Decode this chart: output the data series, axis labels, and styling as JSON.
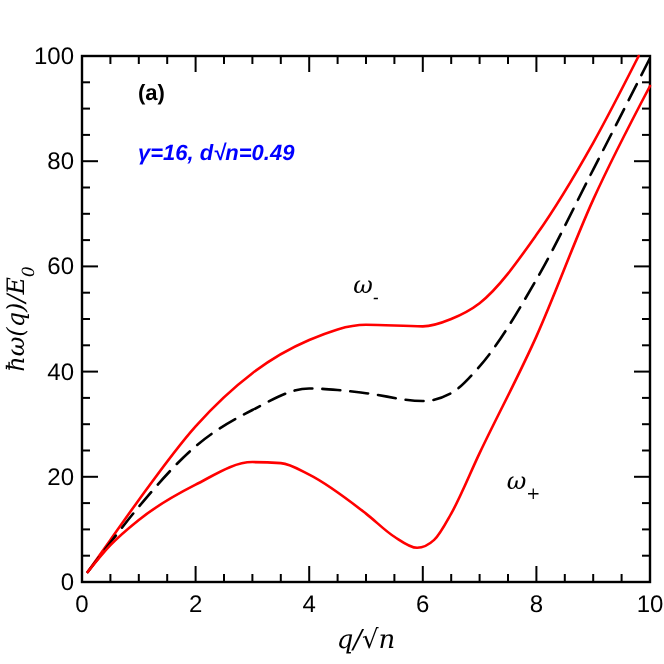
{
  "chart_data": {
    "type": "line",
    "xlabel": "q/√n",
    "ylabel": "ħω(q)/E$_{0}$",
    "xlim": [
      0,
      10
    ],
    "ylim": [
      0,
      100
    ],
    "xticks": [
      0,
      {
        "value": 0.5,
        "label": null
      },
      {
        "value": 1,
        "label": null
      },
      {
        "value": 1.5,
        "label": null
      },
      2,
      {
        "value": 2.5,
        "label": null
      },
      {
        "value": 3,
        "label": null
      },
      {
        "value": 3.5,
        "label": null
      },
      4,
      {
        "value": 4.5,
        "label": null
      },
      {
        "value": 5,
        "label": null
      },
      {
        "value": 5.5,
        "label": null
      },
      6,
      {
        "value": 6.5,
        "label": null
      },
      {
        "value": 7,
        "label": null
      },
      {
        "value": 7.5,
        "label": null
      },
      8,
      {
        "value": 8.5,
        "label": null
      },
      {
        "value": 9,
        "label": null
      },
      {
        "value": 9.5,
        "label": null
      },
      10
    ],
    "yticks": [
      0,
      {
        "value": 5,
        "label": null
      },
      {
        "value": 10,
        "label": null
      },
      {
        "value": 15,
        "label": null
      },
      20,
      {
        "value": 25,
        "label": null
      },
      {
        "value": 30,
        "label": null
      },
      {
        "value": 35,
        "label": null
      },
      40,
      {
        "value": 45,
        "label": null
      },
      {
        "value": 50,
        "label": null
      },
      {
        "value": 55,
        "label": null
      },
      60,
      {
        "value": 65,
        "label": null
      },
      {
        "value": 70,
        "label": null
      },
      {
        "value": 75,
        "label": null
      },
      80,
      {
        "value": 85,
        "label": null
      },
      {
        "value": 90,
        "label": null
      },
      {
        "value": 95,
        "label": null
      },
      100
    ],
    "grid": false,
    "marker": "none",
    "series": [
      {
        "name": "ω$_{-}$",
        "color": "#ff0000",
        "line_style": "solid",
        "x": [
          0.1,
          0.5,
          1,
          2,
          3,
          4,
          5,
          6,
          6.5,
          7,
          8,
          9,
          9.8
        ],
        "values": [
          1.9,
          8,
          15.6,
          29.6,
          39.7,
          46,
          48.9,
          48.6,
          50,
          53,
          66,
          83.5,
          100
        ]
      },
      {
        "color": "#000000",
        "line_style": "dashed",
        "x": [
          0.1,
          0.5,
          1,
          2,
          3,
          4,
          4.5,
          5,
          6,
          6.5,
          7,
          8,
          9,
          10
        ],
        "values": [
          1.9,
          7.5,
          14.3,
          25.8,
          32.7,
          36.8,
          36.5,
          35.9,
          34.4,
          35.9,
          41,
          57.5,
          78.4,
          99.6
        ]
      },
      {
        "name": "ω$_{+}$",
        "color": "#ff0000",
        "line_style": "solid",
        "x": [
          0.1,
          0.5,
          1,
          2,
          3,
          3.5,
          4,
          5,
          5.5,
          5.9,
          6.2,
          6.5,
          7,
          8,
          9,
          10
        ],
        "values": [
          1.9,
          7,
          11.8,
          18.5,
          22.8,
          22.6,
          20.4,
          13,
          8.6,
          6.5,
          8,
          13,
          24.5,
          46.7,
          72.7,
          94.3
        ]
      }
    ],
    "annotations": [
      {
        "text": "(a)"
      },
      {
        "text": "γ=16,  d√n=0.49"
      }
    ]
  }
}
